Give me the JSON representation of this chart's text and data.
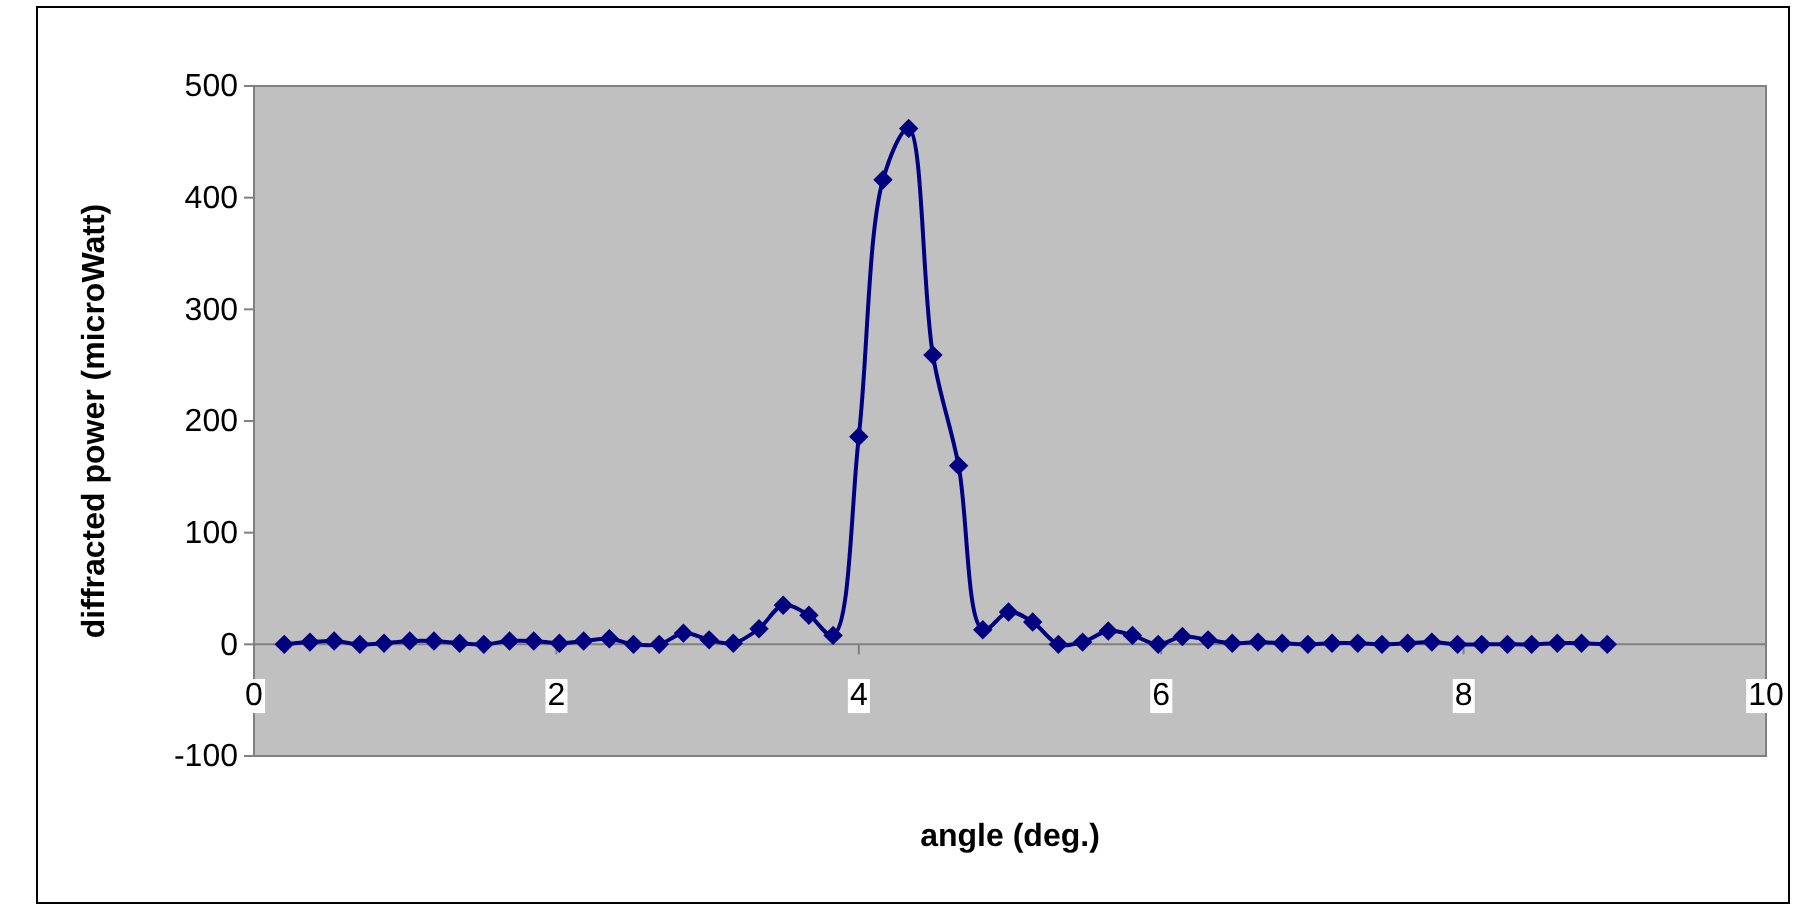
{
  "chart_data": {
    "type": "line",
    "xlabel": "angle (deg.)",
    "ylabel": "diffracted power (microWatt)",
    "x": [
      0.2,
      0.37,
      0.53,
      0.7,
      0.86,
      1.03,
      1.19,
      1.36,
      1.52,
      1.69,
      1.85,
      2.02,
      2.18,
      2.35,
      2.51,
      2.68,
      2.84,
      3.01,
      3.17,
      3.34,
      3.5,
      3.67,
      3.83,
      4.0,
      4.16,
      4.33,
      4.49,
      4.66,
      4.82,
      4.99,
      5.15,
      5.32,
      5.48,
      5.65,
      5.81,
      5.98,
      6.14,
      6.31,
      6.47,
      6.64,
      6.8,
      6.97,
      7.13,
      7.3,
      7.46,
      7.63,
      7.79,
      7.96,
      8.12,
      8.29,
      8.45,
      8.62,
      8.78,
      8.95
    ],
    "series": [
      {
        "color": "#000080",
        "values": [
          0,
          2,
          3,
          0,
          1,
          3,
          3,
          1,
          0,
          3,
          3,
          1,
          3,
          5,
          0,
          0,
          10,
          4,
          1,
          14,
          35,
          26,
          8,
          186,
          416,
          462,
          259,
          160,
          13,
          29,
          20,
          0,
          2,
          12,
          8,
          0,
          7,
          4,
          1,
          2,
          1,
          0,
          1,
          1,
          0,
          1,
          2,
          0,
          0,
          0,
          0,
          1,
          1,
          0
        ]
      }
    ],
    "xlim": [
      0,
      10
    ],
    "xticks": [
      0,
      2,
      4,
      6,
      8,
      10
    ],
    "ylim": [
      -100,
      500
    ],
    "yticks": [
      -100,
      0,
      100,
      200,
      300,
      400,
      500
    ],
    "marker": "diamond",
    "grid": false
  }
}
